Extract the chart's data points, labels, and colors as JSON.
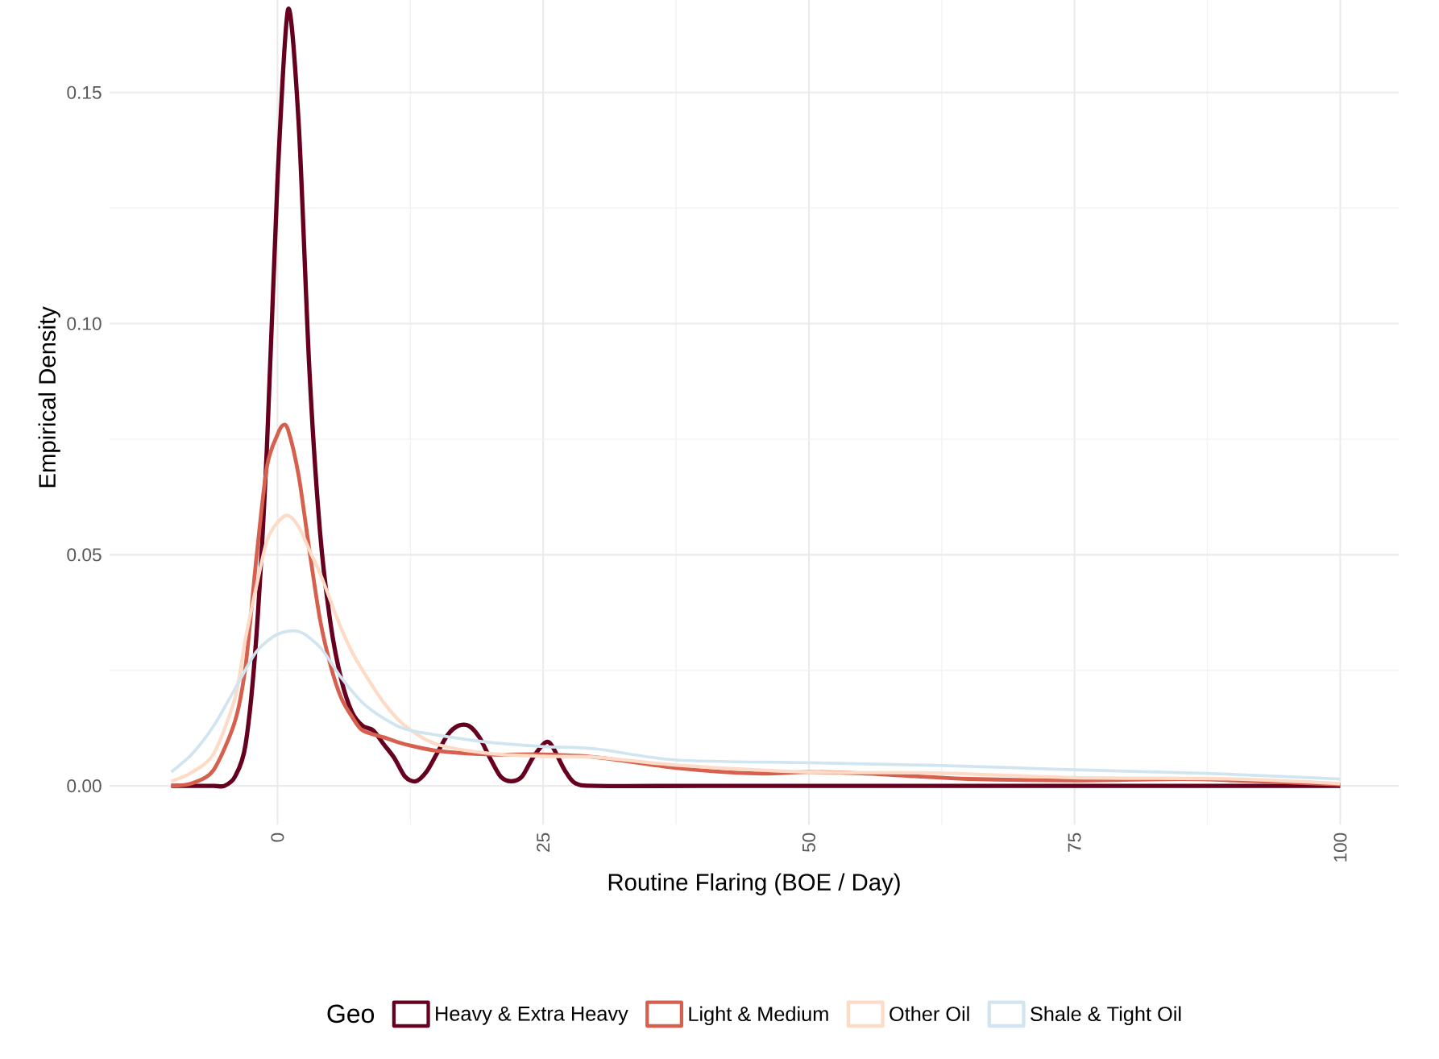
{
  "chart_data": {
    "type": "line",
    "xlabel": "Routine Flaring (BOE / Day)",
    "ylabel": "Empirical Density",
    "legend_title": "Geo",
    "xlim": [
      -15.8,
      105.5
    ],
    "ylim": [
      -0.0084,
      0.1764
    ],
    "xticks": [
      0,
      25,
      50,
      75,
      100
    ],
    "yticks": [
      {
        "value": 0,
        "label": "0.00"
      },
      0.05,
      {
        "value": 0.1,
        "label": "0.10"
      },
      0.15
    ],
    "grid": true,
    "legend": "bottom",
    "series": [
      {
        "name": "Heavy & Extra Heavy",
        "color": "#67001f",
        "x": [
          -10,
          -8,
          -6,
          -5,
          -4,
          -3,
          -2,
          -1,
          0,
          1,
          2,
          3,
          4,
          5,
          6,
          7,
          8,
          9,
          10,
          11,
          12,
          13,
          14,
          15,
          16,
          17,
          18,
          19,
          20,
          21,
          22,
          23,
          24,
          25,
          25.5,
          26,
          27,
          28,
          30,
          40,
          60,
          80,
          100
        ],
        "values": [
          0,
          0,
          0,
          0,
          0.002,
          0.009,
          0.032,
          0.073,
          0.131,
          0.168,
          0.143,
          0.09,
          0.055,
          0.035,
          0.023,
          0.016,
          0.013,
          0.012,
          0.009,
          0.006,
          0.002,
          0.001,
          0.003,
          0.007,
          0.011,
          0.013,
          0.013,
          0.0105,
          0.006,
          0.002,
          0.001,
          0.002,
          0.006,
          0.009,
          0.0095,
          0.008,
          0.0035,
          0.0006,
          0,
          0,
          0,
          0,
          0
        ]
      },
      {
        "name": "Light & Medium",
        "color": "#d6604d",
        "x": [
          -10,
          -8,
          -6,
          -4,
          -3,
          -2,
          -1,
          0,
          0.5,
          1,
          2,
          3,
          4,
          5,
          6,
          7,
          8,
          10,
          12,
          15,
          20,
          25,
          30,
          37.5,
          45,
          50,
          55,
          60,
          65,
          75,
          85,
          90,
          100
        ],
        "values": [
          0,
          0.0006,
          0.0035,
          0.014,
          0.026,
          0.049,
          0.069,
          0.076,
          0.078,
          0.077,
          0.067,
          0.051,
          0.036,
          0.026,
          0.019,
          0.015,
          0.012,
          0.0105,
          0.009,
          0.0076,
          0.0068,
          0.0068,
          0.0062,
          0.0039,
          0.0027,
          0.003,
          0.0027,
          0.0021,
          0.0015,
          0.0012,
          0.0015,
          0.0012,
          0.0003
        ]
      },
      {
        "name": "Other Oil",
        "color": "#fddbc7",
        "x": [
          -10,
          -8,
          -6,
          -4,
          -3,
          -2,
          -1,
          0,
          1,
          2,
          3,
          4,
          5,
          6,
          7,
          8,
          10,
          12,
          15,
          20,
          25,
          30,
          37.5,
          50,
          62,
          75,
          90,
          100
        ],
        "values": [
          0.001,
          0.003,
          0.007,
          0.019,
          0.032,
          0.043,
          0.053,
          0.057,
          0.0585,
          0.056,
          0.051,
          0.046,
          0.04,
          0.034,
          0.029,
          0.025,
          0.018,
          0.013,
          0.009,
          0.007,
          0.0064,
          0.0062,
          0.0045,
          0.003,
          0.0028,
          0.0018,
          0.0015,
          0.0005
        ]
      },
      {
        "name": "Shale & Tight Oil",
        "color": "#d1e5f0",
        "x": [
          -10,
          -8,
          -6,
          -4,
          -2,
          0,
          2,
          4,
          6,
          8,
          10,
          12,
          15,
          20,
          25,
          30,
          37.5,
          50,
          62.5,
          75,
          87.5,
          100
        ],
        "values": [
          0.003,
          0.007,
          0.013,
          0.021,
          0.029,
          0.0328,
          0.0334,
          0.03,
          0.0234,
          0.018,
          0.0146,
          0.0123,
          0.011,
          0.0094,
          0.0085,
          0.008,
          0.0056,
          0.005,
          0.0044,
          0.0035,
          0.0027,
          0.0015
        ]
      }
    ]
  }
}
